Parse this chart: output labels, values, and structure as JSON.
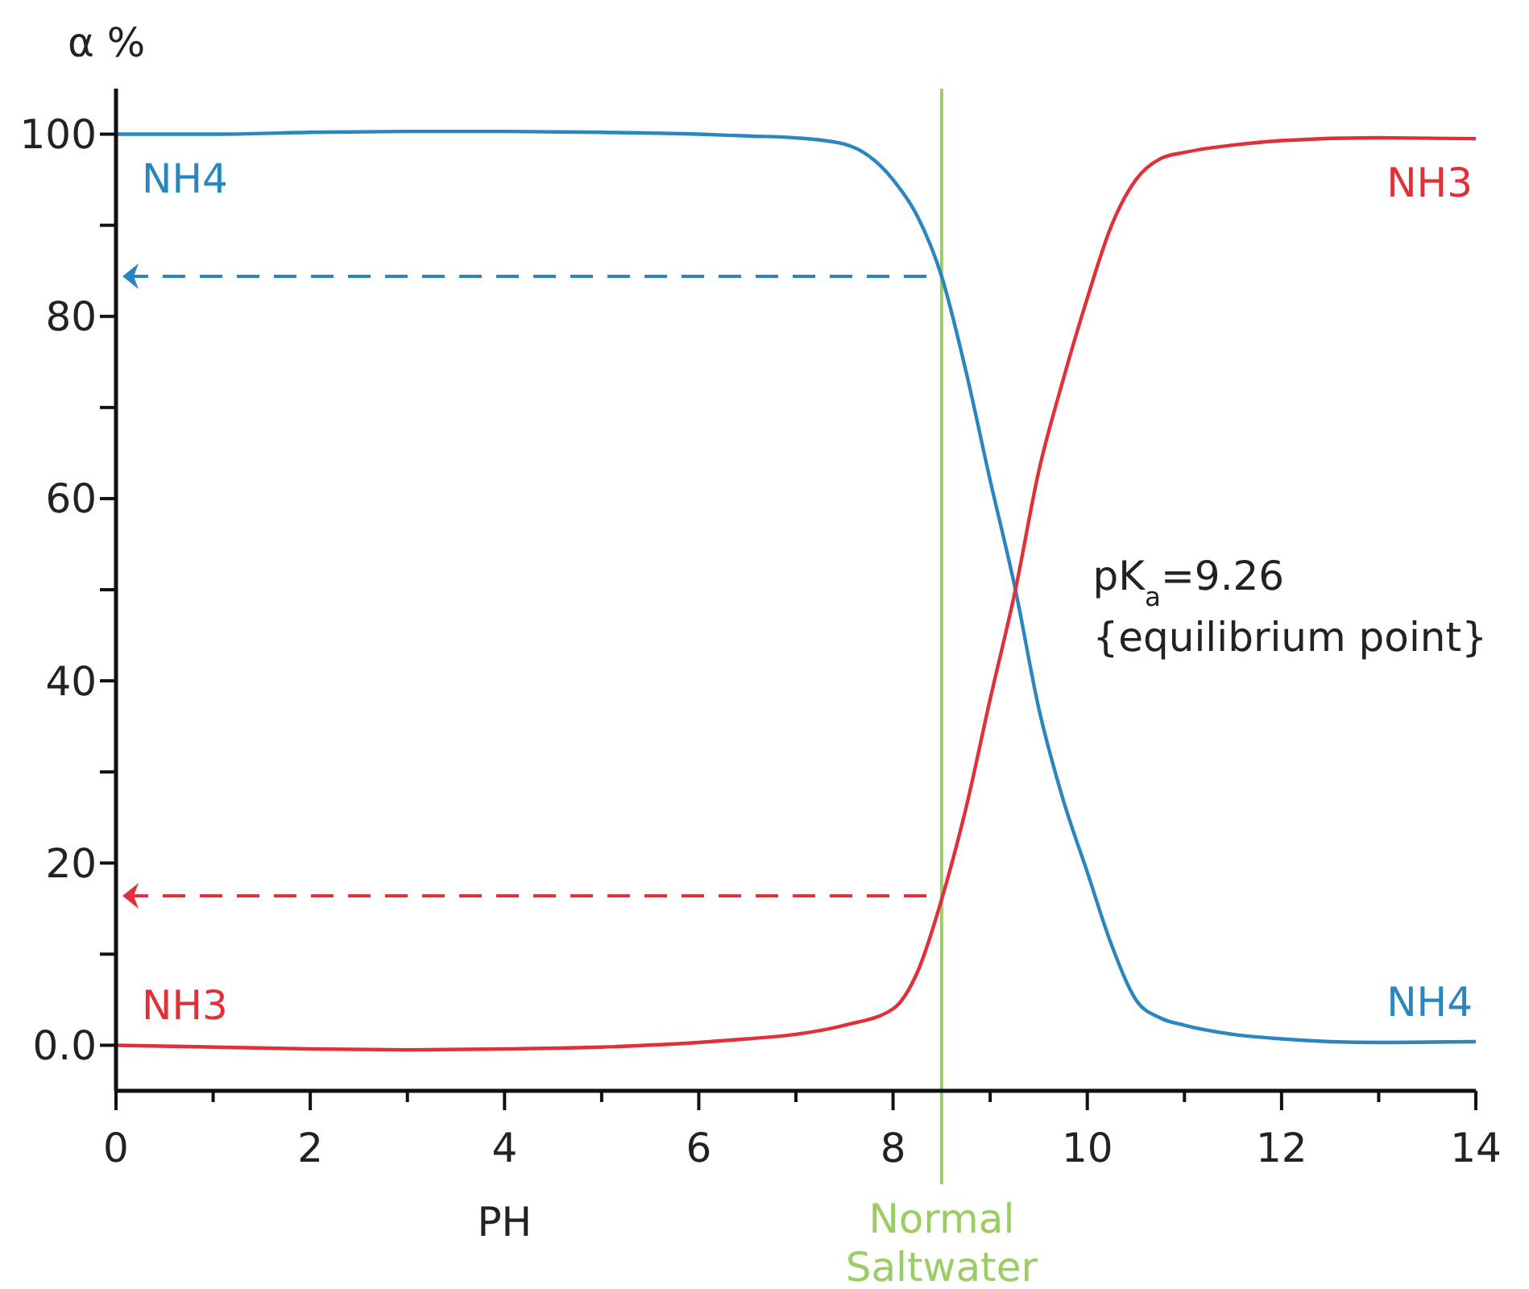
{
  "chart_data": {
    "type": "line",
    "xlabel": "PH",
    "ylabel": "α %",
    "x": [
      0,
      1,
      2,
      3,
      4,
      5,
      6,
      6.5,
      7,
      7.5,
      8,
      8.25,
      8.5,
      8.75,
      9,
      9.26,
      9.5,
      9.75,
      10,
      10.25,
      10.5,
      10.75,
      11,
      11.5,
      12,
      13,
      14
    ],
    "series": [
      {
        "name": "NH4",
        "color": "#2a86bf",
        "values": [
          100,
          100,
          100.2,
          100.3,
          100.3,
          100.2,
          100,
          99.8,
          99.6,
          98.9,
          95,
          91,
          84.4,
          74,
          62,
          50,
          37,
          27,
          19,
          11,
          5,
          3,
          2.2,
          1.2,
          0.7,
          0.3,
          0.4
        ]
      },
      {
        "name": "NH3",
        "color": "#e0303a",
        "values": [
          0,
          -0.2,
          -0.4,
          -0.5,
          -0.4,
          -0.2,
          0.3,
          0.7,
          1.2,
          2.2,
          4,
          8,
          16,
          26,
          38,
          50,
          63,
          73,
          82,
          90,
          95,
          97.3,
          98,
          98.8,
          99.3,
          99.6,
          99.5
        ]
      }
    ],
    "xlim": [
      0,
      14
    ],
    "ylim": [
      -5,
      105
    ],
    "xticks": [
      0,
      {
        "value": 1,
        "label": null
      },
      2,
      {
        "value": 3,
        "label": null
      },
      4,
      {
        "value": 5,
        "label": null
      },
      6,
      {
        "value": 7,
        "label": null
      },
      8,
      {
        "value": 9,
        "label": null
      },
      10,
      {
        "value": 11,
        "label": null
      },
      12,
      {
        "value": 13,
        "label": null
      },
      14
    ],
    "yticks": [
      {
        "value": 0,
        "label": "0.0"
      },
      {
        "value": 10,
        "label": null
      },
      20,
      {
        "value": 30,
        "label": null
      },
      40,
      {
        "value": 50,
        "label": null
      },
      60,
      {
        "value": 70,
        "label": null
      },
      80,
      {
        "value": 90,
        "label": null
      },
      100
    ],
    "ref_lines": [
      {
        "axis": "x",
        "value": 8.5,
        "label": "Normal Saltwater",
        "color": "#9ccc65"
      },
      {
        "axis": "y",
        "value": 84.4,
        "color": "#2a86bf",
        "line_style": "dashed"
      },
      {
        "axis": "y",
        "value": 16.4,
        "color": "#e0303a",
        "line_style": "dashed"
      }
    ],
    "annotations": [
      {
        "text": "pK$_{a}$=9.26",
        "x": 9.26,
        "y": 50
      },
      {
        "text": "{equilibrium point}",
        "x": 9.26,
        "y": 50
      }
    ],
    "grid": false,
    "marker": "none",
    "line_style": "solid"
  }
}
